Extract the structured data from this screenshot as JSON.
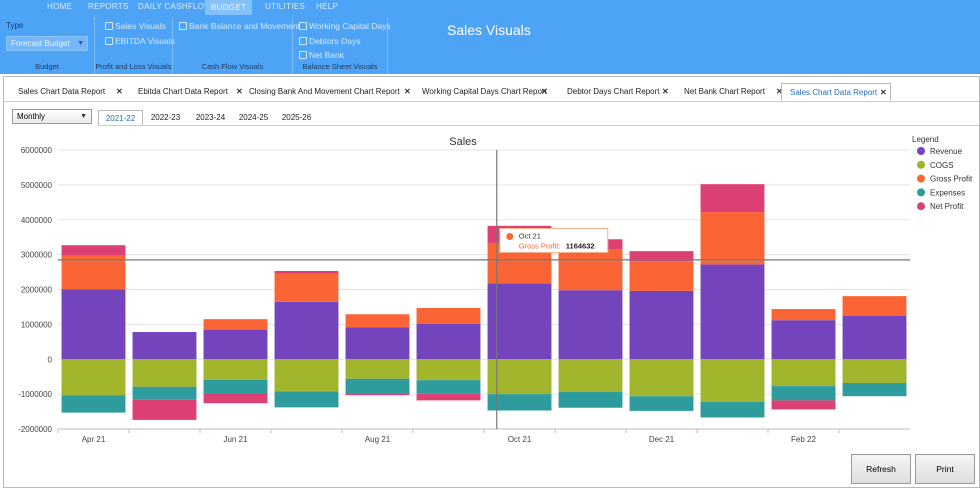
{
  "window": {
    "title": "Sales Visuals"
  },
  "ribbon": {
    "tabs": [
      {
        "label": "HOME",
        "x": 47
      },
      {
        "label": "REPORTS",
        "x": 88
      },
      {
        "label": "DAILY CASHFLOW",
        "x": 138
      },
      {
        "label": "BUDGET",
        "x": 212,
        "active": true
      },
      {
        "label": "UTILITIES",
        "x": 265
      },
      {
        "label": "HELP",
        "x": 316
      }
    ],
    "type_label": "Type",
    "type_value": "Forecast Budget",
    "groups": {
      "budget": "Budget",
      "pl": "Profit and Loss Visuals",
      "cf": "Cash Flow Visuals",
      "bs": "Balance Sheet Visuals"
    },
    "items": {
      "sales_visuals": "Sales Visuals",
      "ebitda_visuals": "EBITDA Visuals",
      "bank_balance": "Bank Balance and Movement",
      "wc_days": "Working Capital Days",
      "debtors_days": "Debtors Days",
      "net_bank": "Net Bank"
    }
  },
  "doc_tabs": [
    "Sales Chart Data Report",
    "Ebitda Chart Data Report",
    "Closing Bank And Movement Chart Report",
    "Working Capital Days Chart Report",
    "Debtor Days Chart Report",
    "Net Bank Chart Report",
    "Sales Chart Data Report"
  ],
  "active_doc_tab": 6,
  "period": "Monthly",
  "years": [
    "2021-22",
    "2022-23",
    "2023-24",
    "2024-25",
    "2025-26"
  ],
  "active_year": 0,
  "buttons": {
    "refresh": "Refresh",
    "print": "Print"
  },
  "tooltip": {
    "title": "Oct 21",
    "label": "Gross Profit:",
    "value": "1164632"
  },
  "chart_data": {
    "type": "bar",
    "stacked": true,
    "title": "Sales",
    "legend_title": "Legend",
    "legend_position": "top-right",
    "ylim": [
      -2000000,
      6000000
    ],
    "yticks": [
      6000000,
      5000000,
      4000000,
      3000000,
      2000000,
      1000000,
      0,
      -1000000,
      -2000000
    ],
    "categories": [
      "Apr 21",
      "May 21",
      "Jun 21",
      "Jul 21",
      "Aug 21",
      "Sep 21",
      "Oct 21",
      "Nov 21",
      "Dec 21",
      "Jan 22",
      "Feb 22",
      "Mar 22"
    ],
    "x_tick_labels": [
      "Apr 21",
      "Jun 21",
      "Aug 21",
      "Oct 21",
      "Dec 21",
      "Feb 22"
    ],
    "colors": {
      "Revenue": "#7444bc",
      "COGS": "#a0b42c",
      "Gross Profit": "#fb6434",
      "Expenses": "#2e9c9c",
      "Net Profit": "#dc4074"
    },
    "series": [
      {
        "name": "Revenue",
        "values": [
          2000000,
          780000,
          850000,
          1650000,
          920000,
          1020000,
          2170000,
          1980000,
          1960000,
          2720000,
          1120000,
          1240000
        ]
      },
      {
        "name": "COGS",
        "values": [
          -1030000,
          -790000,
          -590000,
          -920000,
          -560000,
          -600000,
          -1000000,
          -940000,
          -1060000,
          -1220000,
          -770000,
          -680000
        ]
      },
      {
        "name": "Gross Profit",
        "values": [
          970000,
          0,
          300000,
          800000,
          370000,
          450000,
          1164632,
          1180000,
          850000,
          1500000,
          320000,
          570000
        ]
      },
      {
        "name": "Expenses",
        "values": [
          -500000,
          -370000,
          -380000,
          -460000,
          -420000,
          -390000,
          -470000,
          -450000,
          -420000,
          -450000,
          -410000,
          -380000
        ]
      },
      {
        "name": "Net Profit",
        "values": [
          300000,
          -580000,
          -290000,
          80000,
          -50000,
          -190000,
          490000,
          280000,
          290000,
          800000,
          -260000,
          0
        ]
      }
    ],
    "cursor_category": "Oct 21",
    "cursor_value": 2850000
  }
}
